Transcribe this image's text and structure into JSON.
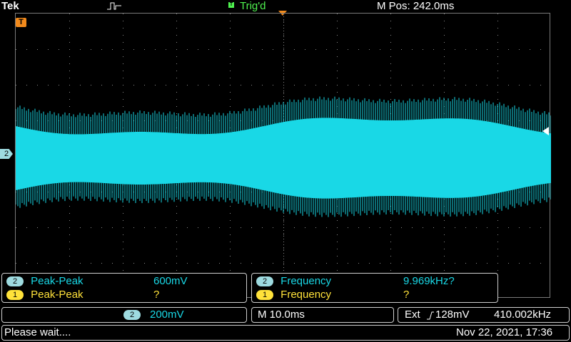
{
  "header": {
    "brand": "Tek",
    "trigger_status": "Trig'd",
    "trigger_channel_box": "T",
    "horizontal_position": "M Pos: 242.0ms"
  },
  "markers": {
    "trigger_level_label": "T",
    "channel2_ground_label": "2"
  },
  "colors": {
    "channel1": "#ffe23a",
    "channel2": "#19d8e6",
    "trigger": "#f28a1c",
    "trigger_status": "#4ff24f"
  },
  "measurements": {
    "left": [
      {
        "channel": "2",
        "name": "Peak-Peak",
        "value": "600mV"
      },
      {
        "channel": "1",
        "name": "Peak-Peak",
        "value": "?"
      }
    ],
    "right": [
      {
        "channel": "2",
        "name": "Frequency",
        "value": "9.969kHz?"
      },
      {
        "channel": "1",
        "name": "Frequency",
        "value": "?"
      }
    ]
  },
  "settings": {
    "channel2_badge": "2",
    "channel2_scale": "200mV",
    "timebase": "M 10.0ms",
    "trigger_source": "Ext",
    "trigger_slope_icon": "rising-edge-icon",
    "trigger_level": "128mV",
    "trigger_frequency": "410.002kHz"
  },
  "status": {
    "message": "Please wait....",
    "datetime": "Nov 22, 2021, 17:36"
  }
}
